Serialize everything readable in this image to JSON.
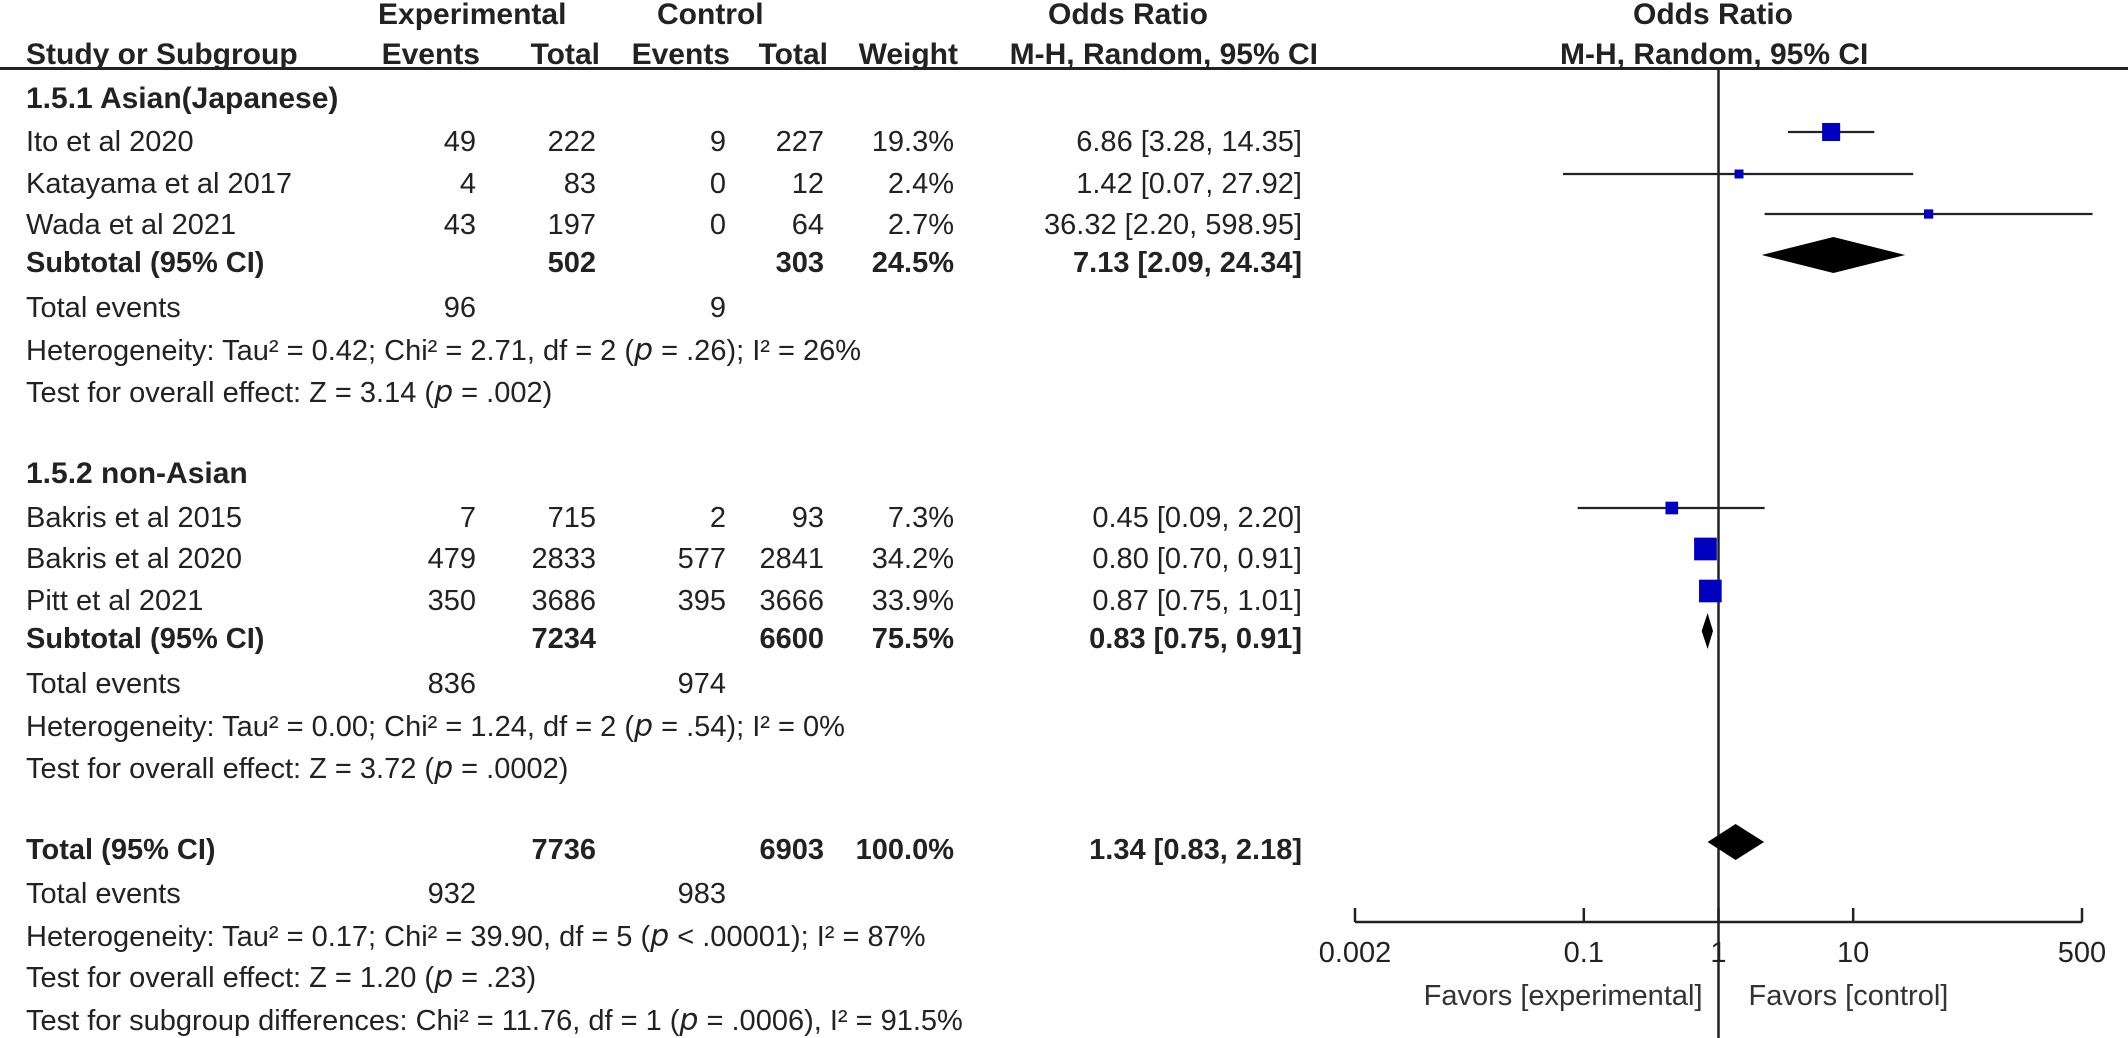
{
  "header": {
    "experimental": "Experimental",
    "control": "Control",
    "odds_ratio_col": "Odds Ratio",
    "odds_ratio_plot": "Odds Ratio",
    "study": "Study or Subgroup",
    "events": "Events",
    "total": "Total",
    "weight": "Weight",
    "method_col": "M-H, Random, 95% CI",
    "method_plot": "M-H, Random, 95% CI"
  },
  "groups": [
    {
      "title": "1.5.1 Asian(Japanese)",
      "studies": [
        {
          "name": "Ito et al  2020",
          "e_events": "49",
          "e_total": "222",
          "c_events": "9",
          "c_total": "227",
          "weight": "19.3%",
          "ci": "6.86 [3.28, 14.35]"
        },
        {
          "name": "Katayama et al  2017",
          "e_events": "4",
          "e_total": "83",
          "c_events": "0",
          "c_total": "12",
          "weight": "2.4%",
          "ci": "1.42 [0.07, 27.92]"
        },
        {
          "name": "Wada et al  2021",
          "e_events": "43",
          "e_total": "197",
          "c_events": "0",
          "c_total": "64",
          "weight": "2.7%",
          "ci": "36.32 [2.20, 598.95]"
        }
      ],
      "subtotal": {
        "label": "Subtotal (95% CI)",
        "e_total": "502",
        "c_total": "303",
        "weight": "24.5%",
        "ci": "7.13 [2.09, 24.34]"
      },
      "total_events": {
        "label": "Total events",
        "e": "96",
        "c": "9"
      },
      "heterogeneity": {
        "before": "Heterogeneity: Tau² = 0.42; Chi² = 2.71, df = 2 (",
        "p": "p",
        "after": " = .26); I² = 26%"
      },
      "overall": {
        "before": "Test for overall effect: Z = 3.14 (",
        "p": "p",
        "after": " = .002)"
      }
    },
    {
      "title": "1.5.2 non-Asian",
      "studies": [
        {
          "name": "Bakris et al  2015",
          "e_events": "7",
          "e_total": "715",
          "c_events": "2",
          "c_total": "93",
          "weight": "7.3%",
          "ci": "0.45 [0.09, 2.20]"
        },
        {
          "name": "Bakris et al  2020",
          "e_events": "479",
          "e_total": "2833",
          "c_events": "577",
          "c_total": "2841",
          "weight": "34.2%",
          "ci": "0.80 [0.70, 0.91]"
        },
        {
          "name": "Pitt et al  2021",
          "e_events": "350",
          "e_total": "3686",
          "c_events": "395",
          "c_total": "3666",
          "weight": "33.9%",
          "ci": "0.87 [0.75, 1.01]"
        }
      ],
      "subtotal": {
        "label": "Subtotal (95% CI)",
        "e_total": "7234",
        "c_total": "6600",
        "weight": "75.5%",
        "ci": "0.83 [0.75, 0.91]"
      },
      "total_events": {
        "label": "Total events",
        "e": "836",
        "c": "974"
      },
      "heterogeneity": {
        "before": "Heterogeneity: Tau² = 0.00; Chi² = 1.24, df = 2 (",
        "p": "p",
        "after": " = .54); I² = 0%"
      },
      "overall": {
        "before": "Test for overall effect: Z = 3.72 (",
        "p": "p",
        "after": " = .0002)"
      }
    }
  ],
  "total": {
    "label": "Total (95% CI)",
    "e_total": "7736",
    "c_total": "6903",
    "weight": "100.0%",
    "ci": "1.34 [0.83, 2.18]",
    "total_events": {
      "label": "Total events",
      "e": "932",
      "c": "983"
    },
    "heterogeneity": {
      "before": "Heterogeneity: Tau² = 0.17; Chi² = 39.90, df = 5 (",
      "p": "p",
      "after": " < .00001); I² = 87%"
    },
    "overall": {
      "before": "Test for overall effect: Z = 1.20 (",
      "p": "p",
      "after": " = .23)"
    },
    "subgroup": {
      "before": "Test for subgroup differences: Chi² = 11.76, df = 1 (",
      "p": "p",
      "after": " = .0006), I² = 91.5%"
    }
  },
  "axis": {
    "ticks": [
      "0.002",
      "0.1",
      "1",
      "10",
      "500"
    ],
    "favors_experimental": "Favors [experimental]",
    "favors_control": "Favors [control]"
  },
  "colors": {
    "study_marker": "#0000c0",
    "diamond": "#000000",
    "line": "#222222"
  },
  "chart_data": {
    "type": "forest",
    "scale": "log",
    "xlim": [
      0.002,
      500
    ],
    "ticks": [
      0.002,
      0.1,
      1,
      10,
      500
    ],
    "reference": 1,
    "studies": [
      {
        "name": "Ito et al  2020",
        "or": 6.86,
        "lo": 3.28,
        "hi": 14.35,
        "weight": 19.3
      },
      {
        "name": "Katayama et al  2017",
        "or": 1.42,
        "lo": 0.07,
        "hi": 27.92,
        "weight": 2.4
      },
      {
        "name": "Wada et al  2021",
        "or": 36.32,
        "lo": 2.2,
        "hi": 598.95,
        "weight": 2.7
      },
      {
        "name": "Bakris et al  2015",
        "or": 0.45,
        "lo": 0.09,
        "hi": 2.2,
        "weight": 7.3
      },
      {
        "name": "Bakris et al  2020",
        "or": 0.8,
        "lo": 0.7,
        "hi": 0.91,
        "weight": 34.2
      },
      {
        "name": "Pitt et al  2021",
        "or": 0.87,
        "lo": 0.75,
        "hi": 1.01,
        "weight": 33.9
      }
    ],
    "summaries": [
      {
        "name": "Subtotal (95% CI)",
        "or": 7.13,
        "lo": 2.09,
        "hi": 24.34
      },
      {
        "name": "Subtotal (95% CI)",
        "or": 0.83,
        "lo": 0.75,
        "hi": 0.91
      },
      {
        "name": "Total (95% CI)",
        "or": 1.34,
        "lo": 0.83,
        "hi": 2.18
      }
    ]
  }
}
